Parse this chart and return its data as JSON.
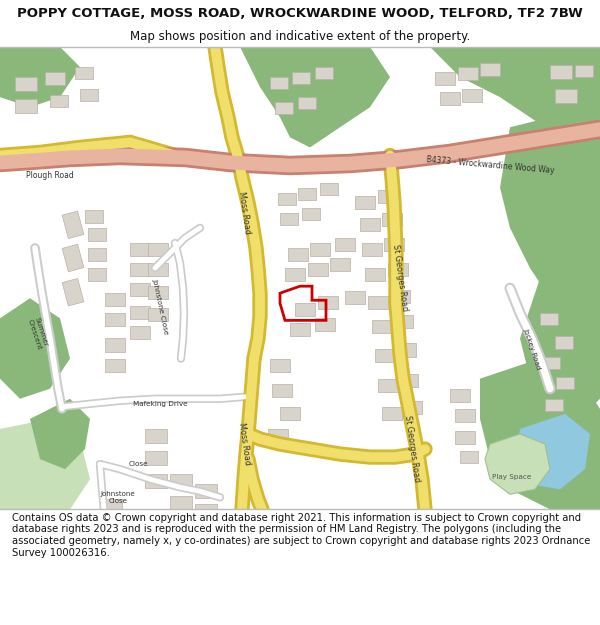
{
  "title": "POPPY COTTAGE, MOSS ROAD, WROCKWARDINE WOOD, TELFORD, TF2 7BW",
  "subtitle": "Map shows position and indicative extent of the property.",
  "title_fontsize": 9.5,
  "subtitle_fontsize": 8.5,
  "footer_text": "Contains OS data © Crown copyright and database right 2021. This information is subject to Crown copyright and database rights 2023 and is reproduced with the permission of HM Land Registry. The polygons (including the associated geometry, namely x, y co-ordinates) are subject to Crown copyright and database rights 2023 Ordnance Survey 100026316.",
  "footer_fontsize": 7.2,
  "map_bg": "#f5f3ef",
  "road_yellow": "#f0df6a",
  "road_yellow_border": "#d4b830",
  "road_yellow_light": "#f8f0b0",
  "road_pink": "#e8b4a0",
  "road_pink_border": "#c88070",
  "green_dark": "#8ab87a",
  "green_light": "#b8d8a8",
  "green_pale": "#c8e0b8",
  "building_color": "#d8d4cc",
  "building_outline": "#b8b0a8",
  "water_color": "#90c8e0",
  "property_color": "#cc0000",
  "white": "#ffffff",
  "border_color": "#cccccc"
}
